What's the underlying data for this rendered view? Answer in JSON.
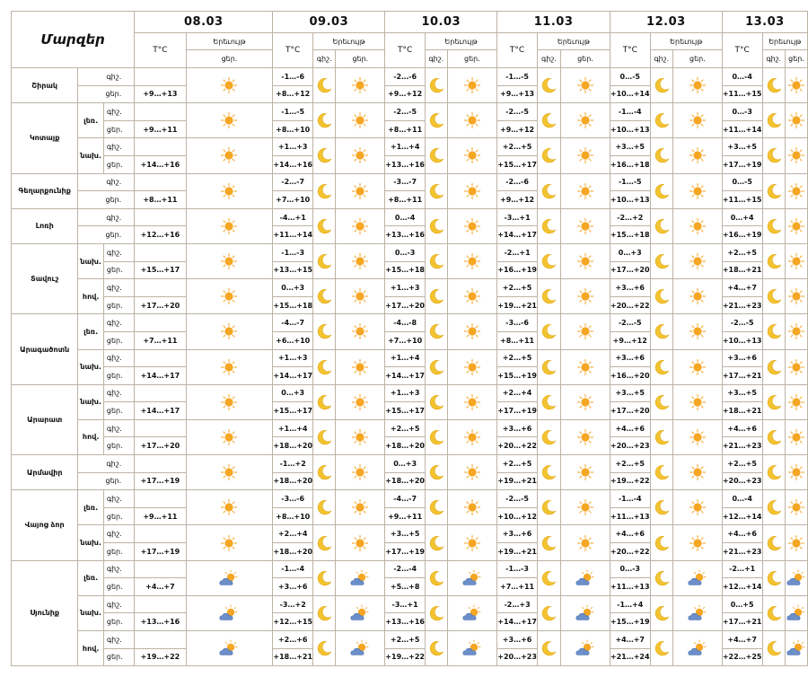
{
  "header": {
    "regions_title": "Մարզեր",
    "temp_label": "T°C",
    "phenomena_label": "Երեւույթ",
    "day_label": "ցեր.",
    "night_label": "գիշ."
  },
  "dates": [
    "08.03",
    "09.03",
    "10.03",
    "11.03",
    "12.03",
    "13.03"
  ],
  "regions": [
    {
      "name": "Շիրակ",
      "rows": [
        {
          "zone": "",
          "tod": "գիշ.",
          "temps": [
            "",
            "-1…-6",
            "-2…-6",
            "-1…-5",
            "0…-5",
            "0…-4"
          ]
        },
        {
          "zone": "",
          "tod": "ցեր.",
          "temps": [
            "+9…+13",
            "+8…+12",
            "+9…+12",
            "+9…+13",
            "+10…+14",
            "+11…+15"
          ]
        }
      ]
    },
    {
      "name": "Կոտայք",
      "rows": [
        {
          "zone": "լեռ.",
          "tod": "գիշ.",
          "temps": [
            "",
            "-1…-5",
            "-2…-5",
            "-2…-5",
            "-1…-4",
            "0…-3"
          ]
        },
        {
          "zone": "",
          "tod": "ցեր.",
          "temps": [
            "+9…+11",
            "+8…+10",
            "+8…+11",
            "+9…+12",
            "+10…+13",
            "+11…+14"
          ]
        },
        {
          "zone": "նախ.",
          "tod": "գիշ.",
          "temps": [
            "",
            "+1…+3",
            "+1…+4",
            "+2…+5",
            "+3…+5",
            "+3…+5"
          ]
        },
        {
          "zone": "",
          "tod": "ցեր.",
          "temps": [
            "+14…+16",
            "+14…+16",
            "+13…+16",
            "+15…+17",
            "+16…+18",
            "+17…+19"
          ]
        }
      ]
    },
    {
      "name": "Գեղարքունիք",
      "rows": [
        {
          "zone": "",
          "tod": "գիշ.",
          "temps": [
            "",
            "-2…-7",
            "-3…-7",
            "-2…-6",
            "-1…-5",
            "0…-5"
          ]
        },
        {
          "zone": "",
          "tod": "ցեր.",
          "temps": [
            "+8…+11",
            "+7…+10",
            "+8…+11",
            "+9…+12",
            "+10…+13",
            "+11…+15"
          ]
        }
      ]
    },
    {
      "name": "Լոռի",
      "rows": [
        {
          "zone": "",
          "tod": "գիշ.",
          "temps": [
            "",
            "-4…+1",
            "0…-4",
            "-3…+1",
            "-2…+2",
            "0…+4"
          ]
        },
        {
          "zone": "",
          "tod": "ցեր.",
          "temps": [
            "+12…+16",
            "+11…+14",
            "+13…+16",
            "+14…+17",
            "+15…+18",
            "+16…+19"
          ]
        }
      ]
    },
    {
      "name": "Տավուշ",
      "rows": [
        {
          "zone": "նախ.",
          "tod": "գիշ.",
          "temps": [
            "",
            "-1…-3",
            "0…-3",
            "-2…+1",
            "0…+3",
            "+2…+5"
          ]
        },
        {
          "zone": "",
          "tod": "ցեր.",
          "temps": [
            "+15…+17",
            "+13…+15",
            "+15…+18",
            "+16…+19",
            "+17…+20",
            "+18…+21"
          ]
        },
        {
          "zone": "հով.",
          "tod": "գիշ.",
          "temps": [
            "",
            "0…+3",
            "+1…+3",
            "+2…+5",
            "+3…+6",
            "+4…+7"
          ]
        },
        {
          "zone": "",
          "tod": "ցեր.",
          "temps": [
            "+17…+20",
            "+15…+18",
            "+17…+20",
            "+19…+21",
            "+20…+22",
            "+21…+23"
          ]
        }
      ]
    },
    {
      "name": "Արագածոտն",
      "rows": [
        {
          "zone": "լեռ.",
          "tod": "գիշ.",
          "temps": [
            "",
            "-4…-7",
            "-4…-8",
            "-3…-6",
            "-2…-5",
            "-2…-5"
          ]
        },
        {
          "zone": "",
          "tod": "ցեր.",
          "temps": [
            "+7…+11",
            "+6…+10",
            "+7…+10",
            "+8…+11",
            "+9…+12",
            "+10…+13"
          ]
        },
        {
          "zone": "նախ.",
          "tod": "գիշ.",
          "temps": [
            "",
            "+1…+3",
            "+1…+4",
            "+2…+5",
            "+3…+6",
            "+3…+6"
          ]
        },
        {
          "zone": "",
          "tod": "ցեր.",
          "temps": [
            "+14…+17",
            "+14…+17",
            "+14…+17",
            "+15…+19",
            "+16…+20",
            "+17…+21"
          ]
        }
      ]
    },
    {
      "name": "Արարատ",
      "rows": [
        {
          "zone": "նախ.",
          "tod": "գիշ.",
          "temps": [
            "",
            "0…+3",
            "+1…+3",
            "+2…+4",
            "+3…+5",
            "+3…+5"
          ]
        },
        {
          "zone": "",
          "tod": "ցեր.",
          "temps": [
            "+14…+17",
            "+15…+17",
            "+15…+17",
            "+17…+19",
            "+17…+20",
            "+18…+21"
          ]
        },
        {
          "zone": "հով.",
          "tod": "գիշ.",
          "temps": [
            "",
            "+1…+4",
            "+2…+5",
            "+3…+6",
            "+4…+6",
            "+4…+6"
          ]
        },
        {
          "zone": "",
          "tod": "ցեր.",
          "temps": [
            "+17…+20",
            "+18…+20",
            "+18…+20",
            "+20…+22",
            "+20…+23",
            "+21…+23"
          ]
        }
      ]
    },
    {
      "name": "Արմավիր",
      "rows": [
        {
          "zone": "",
          "tod": "գիշ.",
          "temps": [
            "",
            "-1…+2",
            "0…+3",
            "+2…+5",
            "+2…+5",
            "+2…+5"
          ]
        },
        {
          "zone": "",
          "tod": "ցեր.",
          "temps": [
            "+17…+19",
            "+18…+20",
            "+18…+20",
            "+19…+21",
            "+19…+22",
            "+20…+23"
          ]
        }
      ]
    },
    {
      "name": "Վայոց ձոր",
      "rows": [
        {
          "zone": "լեռ.",
          "tod": "գիշ.",
          "temps": [
            "",
            "-3…-6",
            "-4…-7",
            "-2…-5",
            "-1…-4",
            "0…-4"
          ]
        },
        {
          "zone": "",
          "tod": "ցեր.",
          "temps": [
            "+9…+11",
            "+8…+10",
            "+9…+11",
            "+10…+12",
            "+11…+13",
            "+12…+14"
          ]
        },
        {
          "zone": "նախ.",
          "tod": "գիշ.",
          "temps": [
            "",
            "+2…+4",
            "+3…+5",
            "+3…+6",
            "+4…+6",
            "+4…+6"
          ]
        },
        {
          "zone": "",
          "tod": "ցեր.",
          "temps": [
            "+17…+19",
            "+18…+20",
            "+17…+19",
            "+19…+21",
            "+20…+22",
            "+21…+23"
          ]
        }
      ]
    },
    {
      "name": "Սյունիք",
      "cloudy": true,
      "rows": [
        {
          "zone": "լեռ.",
          "tod": "գիշ.",
          "temps": [
            "",
            "-1…-4",
            "-2…-4",
            "-1…-3",
            "0…-3",
            "-2…+1"
          ]
        },
        {
          "zone": "",
          "tod": "ցեր.",
          "temps": [
            "+4…+7",
            "+3…+6",
            "+5…+8",
            "+7…+11",
            "+11…+13",
            "+12…+14"
          ]
        },
        {
          "zone": "նախ.",
          "tod": "գիշ.",
          "temps": [
            "",
            "-3…+2",
            "-3…+1",
            "-2…+3",
            "-1…+4",
            "0…+5"
          ]
        },
        {
          "zone": "",
          "tod": "ցեր.",
          "temps": [
            "+13…+16",
            "+12…+15",
            "+13…+16",
            "+14…+17",
            "+15…+19",
            "+17…+21"
          ]
        },
        {
          "zone": "հով.",
          "tod": "գիշ.",
          "temps": [
            "",
            "+2…+6",
            "+2…+5",
            "+3…+6",
            "+4…+7",
            "+4…+7"
          ]
        },
        {
          "zone": "",
          "tod": "ցեր.",
          "temps": [
            "+19…+22",
            "+18…+21",
            "+19…+22",
            "+20…+23",
            "+21…+24",
            "+22…+25"
          ]
        }
      ]
    }
  ],
  "icons": {
    "day": "sun-icon",
    "night": "moon-icon",
    "cloudy": "sun-behind-cloud-icon"
  },
  "colors": {
    "border": "#bdb3a6",
    "sun": "#f5a623",
    "moon": "#f3c331",
    "cloud": "#6c8fc9"
  }
}
